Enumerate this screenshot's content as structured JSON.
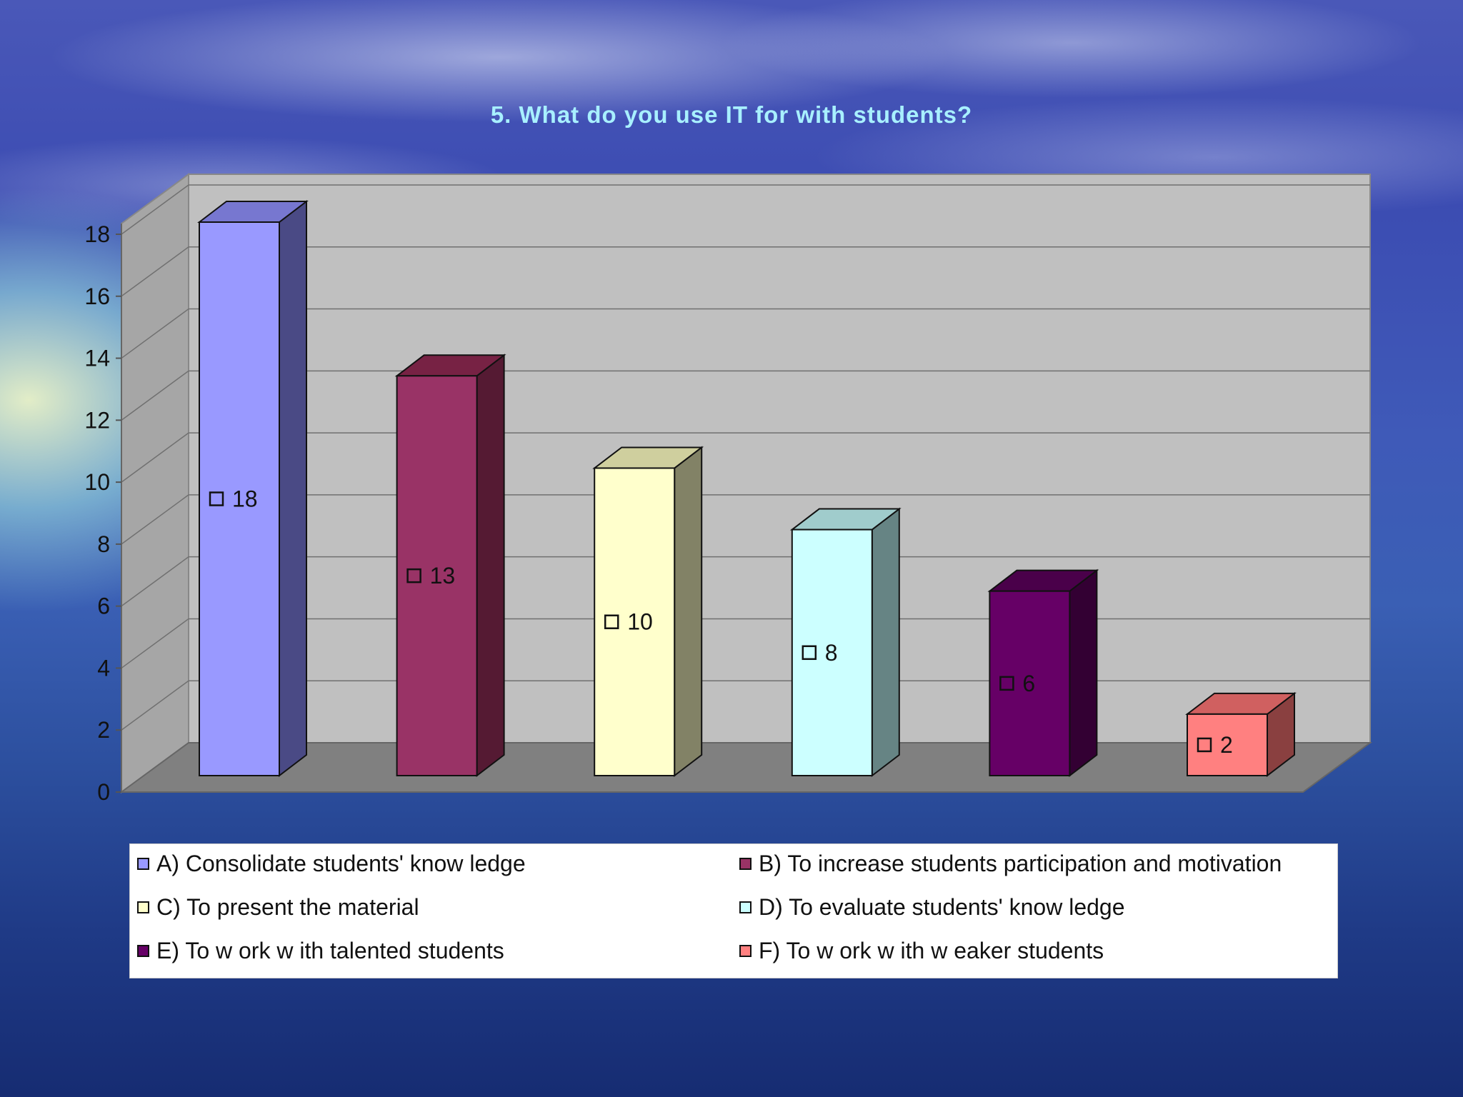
{
  "chart_data": {
    "type": "bar",
    "title": "5. What do you use IT for with students?",
    "categories": [
      "A) Consolidate students' knowledge",
      "B) To increase students participation and motivation",
      "C) To present the material",
      "D) To evaluate students' knowledge",
      "E) To work with talented students",
      "F) To work with weaker students"
    ],
    "values": [
      18,
      13,
      10,
      8,
      6,
      2
    ],
    "data_labels": [
      "18",
      "13",
      "10",
      "8",
      "6",
      "2"
    ],
    "colors": [
      "#9999ff",
      "#993366",
      "#ffffcc",
      "#ccffff",
      "#660066",
      "#ff8080"
    ],
    "side_colors": [
      "#4a4a85",
      "#551a33",
      "#828266",
      "#668484",
      "#330033",
      "#8a4040"
    ],
    "top_colors": [
      "#7777d0",
      "#772244",
      "#cfcf9e",
      "#a0cccc",
      "#4a004a",
      "#d06060"
    ],
    "ylim": [
      0,
      18
    ],
    "yticks": [
      "0",
      "2",
      "4",
      "6",
      "8",
      "10",
      "12",
      "14",
      "16",
      "18"
    ],
    "xlabel": "",
    "ylabel": "",
    "grid": true,
    "legend_position": "bottom",
    "legend": [
      "A) Consolidate students' know ledge",
      "B) To increase students participation and motivation",
      "C) To present the material",
      "D) To evaluate students' know ledge",
      "E) To w ork w ith talented students",
      "F) To w ork w ith w eaker students"
    ]
  }
}
